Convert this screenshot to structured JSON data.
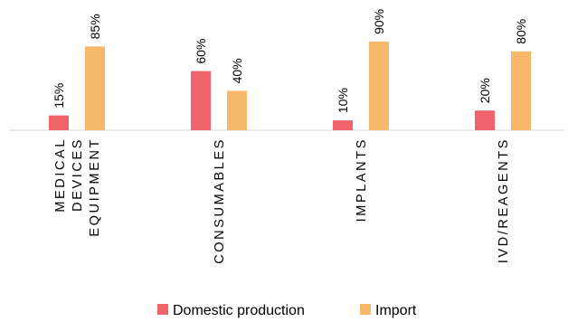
{
  "chart_data": {
    "type": "bar",
    "categories": [
      [
        "MEDICAL",
        "DEVICES",
        "EQUIPMENT"
      ],
      [
        "CONSUMABLES"
      ],
      [
        "IMPLANTS"
      ],
      [
        "IVD/REAGENTS"
      ]
    ],
    "series": [
      {
        "name": "Domestic production",
        "color": "#f0636b",
        "values": [
          15,
          60,
          10,
          20
        ],
        "labels": [
          "15%",
          "60%",
          "10%",
          "20%"
        ]
      },
      {
        "name": "Import",
        "color": "#f8b86a",
        "values": [
          85,
          40,
          90,
          80
        ],
        "labels": [
          "85%",
          "40%",
          "90%",
          "80%"
        ]
      }
    ],
    "ylim": [
      0,
      100
    ],
    "grid": false,
    "legend": "bottom"
  }
}
